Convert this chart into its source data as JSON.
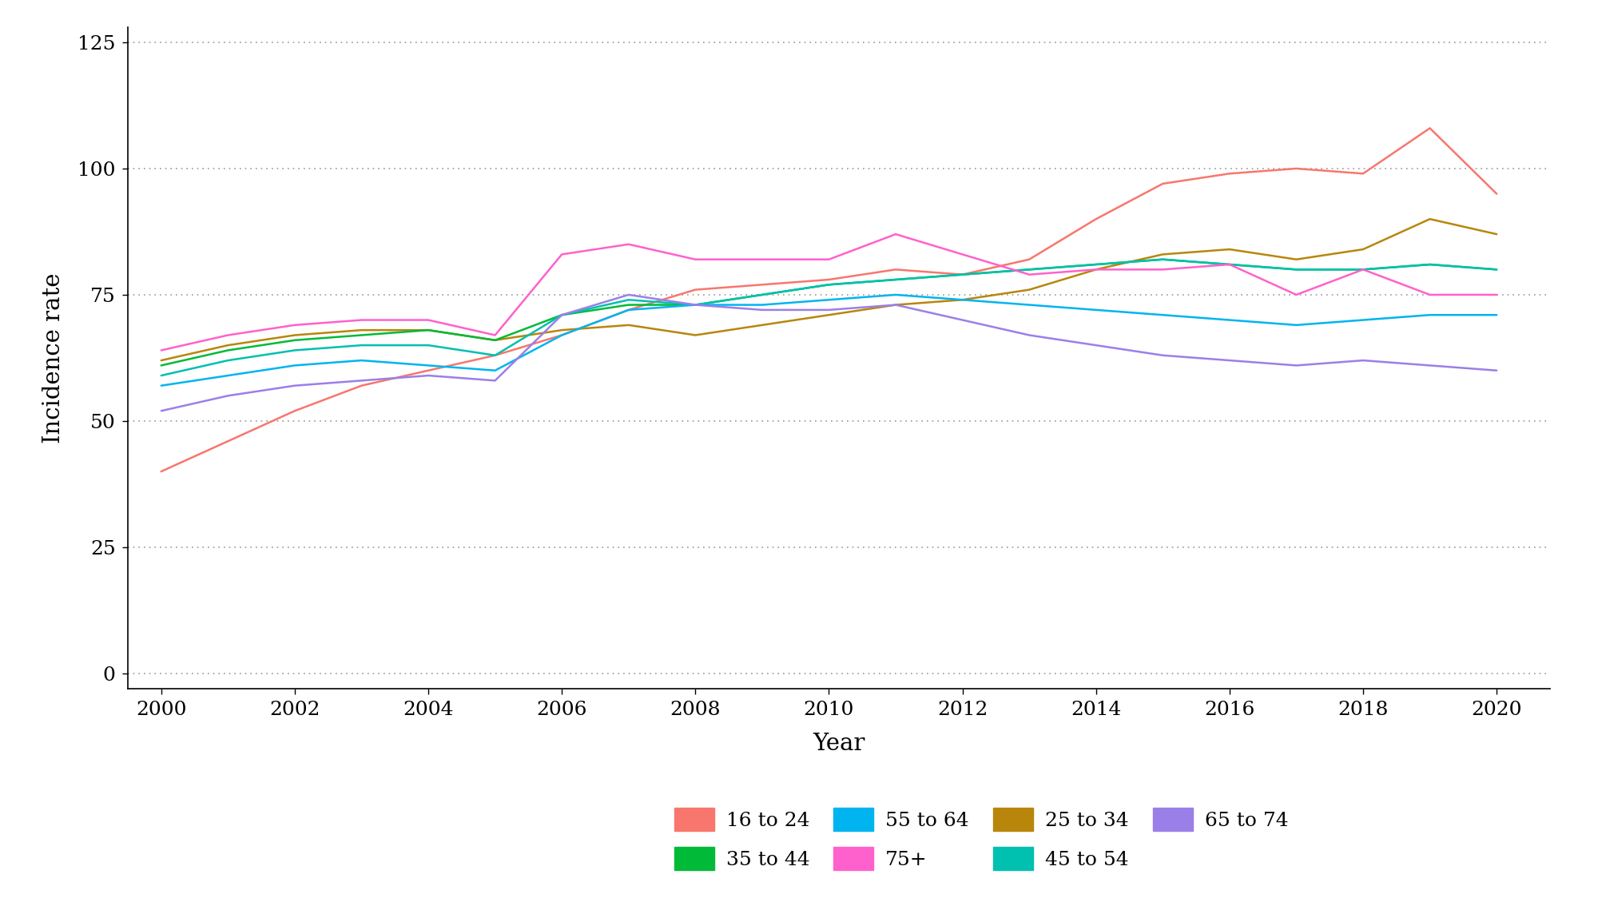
{
  "years": [
    2000,
    2001,
    2002,
    2003,
    2004,
    2005,
    2006,
    2007,
    2008,
    2009,
    2010,
    2011,
    2012,
    2013,
    2014,
    2015,
    2016,
    2017,
    2018,
    2019,
    2020
  ],
  "series": {
    "16 to 24": [
      40,
      46,
      52,
      57,
      60,
      63,
      67,
      72,
      76,
      77,
      78,
      80,
      79,
      82,
      90,
      97,
      99,
      100,
      99,
      108,
      95
    ],
    "25 to 34": [
      62,
      65,
      67,
      68,
      68,
      66,
      68,
      69,
      67,
      69,
      71,
      73,
      74,
      76,
      80,
      83,
      84,
      82,
      84,
      90,
      87
    ],
    "35 to 44": [
      61,
      64,
      66,
      67,
      68,
      66,
      71,
      73,
      73,
      75,
      77,
      78,
      79,
      80,
      81,
      82,
      81,
      80,
      80,
      81,
      80
    ],
    "45 to 54": [
      59,
      62,
      64,
      65,
      65,
      63,
      71,
      74,
      73,
      75,
      77,
      78,
      79,
      80,
      81,
      82,
      81,
      80,
      80,
      81,
      80
    ],
    "55 to 64": [
      57,
      59,
      61,
      62,
      61,
      60,
      67,
      72,
      73,
      73,
      74,
      75,
      74,
      73,
      72,
      71,
      70,
      69,
      70,
      71,
      71
    ],
    "65 to 74": [
      52,
      55,
      57,
      58,
      59,
      58,
      71,
      75,
      73,
      72,
      72,
      73,
      70,
      67,
      65,
      63,
      62,
      61,
      62,
      61,
      60
    ],
    "75+": [
      64,
      67,
      69,
      70,
      70,
      67,
      83,
      85,
      82,
      82,
      82,
      87,
      83,
      79,
      80,
      80,
      81,
      75,
      80,
      75,
      75
    ]
  },
  "colors": {
    "16 to 24": "#F8766D",
    "25 to 34": "#B8860B",
    "35 to 44": "#00BA38",
    "45 to 54": "#00C0AF",
    "55 to 64": "#00B4F0",
    "65 to 74": "#9B7FE8",
    "75+": "#FF61CC"
  },
  "xlabel": "Year",
  "ylabel": "Incidence rate",
  "ylim": [
    -3,
    128
  ],
  "yticks": [
    0,
    25,
    50,
    75,
    100,
    125
  ],
  "xlim": [
    1999.5,
    2020.8
  ],
  "xticks": [
    2000,
    2002,
    2004,
    2006,
    2008,
    2010,
    2012,
    2014,
    2016,
    2018,
    2020
  ],
  "linewidth": 1.8,
  "background_color": "#ffffff",
  "plot_order": [
    "16 to 24",
    "25 to 34",
    "35 to 44",
    "45 to 54",
    "55 to 64",
    "65 to 74",
    "75+"
  ],
  "legend_row1": [
    "16 to 24",
    "35 to 44",
    "55 to 64",
    "75+"
  ],
  "legend_row2": [
    "25 to 34",
    "45 to 54",
    "65 to 74",
    ""
  ]
}
